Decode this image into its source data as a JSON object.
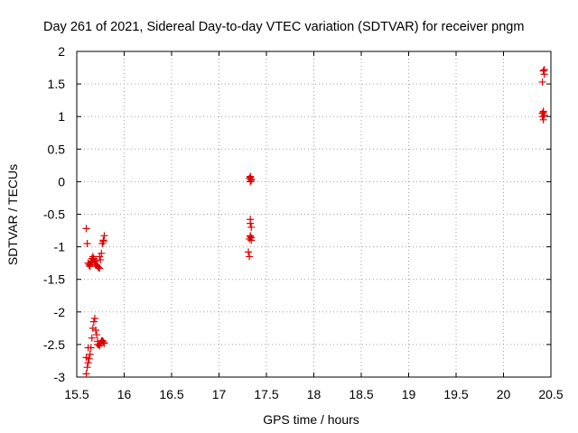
{
  "chart_data": {
    "type": "scatter",
    "title": "Day 261 of 2021, Sidereal Day-to-day VTEC variation (SDTVAR) for receiver pngm",
    "xlabel": "GPS time / hours",
    "ylabel": "SDTVAR / TECUs",
    "xlim": [
      15.5,
      20.5
    ],
    "ylim": [
      -3,
      2
    ],
    "xticks": [
      "15.5",
      "16",
      "16.5",
      "17",
      "17.5",
      "18",
      "18.5",
      "19",
      "19.5",
      "20",
      "20.5"
    ],
    "yticks": [
      "-3",
      "-2.5",
      "-2",
      "-1.5",
      "-1",
      "-0.5",
      "0",
      "0.5",
      "1",
      "1.5",
      "2"
    ],
    "grid": true,
    "marker": "+",
    "color": "#dd0000",
    "series": [
      {
        "name": "SDTVAR",
        "x": [
          15.6,
          15.61,
          15.62,
          15.63,
          15.64,
          15.65,
          15.66,
          15.67,
          15.68,
          15.69,
          15.7,
          15.71,
          15.72,
          15.73,
          15.74,
          15.75,
          15.76,
          15.77,
          15.78,
          15.79,
          15.6,
          15.61,
          15.62,
          15.63,
          15.64,
          15.65,
          15.66,
          15.67,
          15.68,
          15.69,
          15.7,
          15.71,
          15.72,
          15.73,
          15.74,
          15.75,
          15.76,
          15.77,
          15.78,
          15.79,
          15.6,
          15.62,
          15.64,
          15.66,
          15.68,
          15.7,
          15.72,
          15.74,
          15.76,
          15.78,
          17.32,
          17.33,
          17.34,
          17.33,
          17.34,
          17.33,
          17.33,
          17.34,
          17.33,
          17.34,
          17.32,
          17.31,
          17.32,
          17.33,
          17.34,
          17.33,
          20.42,
          20.43,
          20.41,
          20.42,
          20.41,
          20.43,
          20.42,
          20.41,
          20.43,
          20.42
        ],
        "y": [
          -2.95,
          -2.85,
          -2.78,
          -2.72,
          -2.65,
          -2.55,
          -2.4,
          -2.25,
          -2.15,
          -2.1,
          -2.28,
          -2.35,
          -2.45,
          -2.5,
          -2.52,
          -2.48,
          -2.45,
          -2.44,
          -2.46,
          -2.48,
          -0.72,
          -0.95,
          -1.25,
          -1.28,
          -1.3,
          -1.22,
          -1.18,
          -1.15,
          -1.2,
          -1.25,
          -1.22,
          -1.28,
          -1.3,
          -1.32,
          -1.33,
          -1.2,
          -1.1,
          -0.95,
          -0.9,
          -0.83,
          -2.7,
          -2.55,
          -1.27,
          -1.24,
          -1.18,
          -1.28,
          -2.5,
          -1.15,
          -2.45,
          -0.92,
          0.05,
          0.07,
          0.02,
          0.08,
          0.04,
          -0.58,
          -0.64,
          -0.7,
          -0.84,
          -0.86,
          -0.88,
          -1.08,
          -1.15,
          -0.83,
          -0.9,
          0.0,
          1.7,
          1.65,
          1.53,
          1.08,
          1.05,
          1.02,
          0.95,
          1.0,
          1.72,
          1.06
        ]
      }
    ]
  }
}
